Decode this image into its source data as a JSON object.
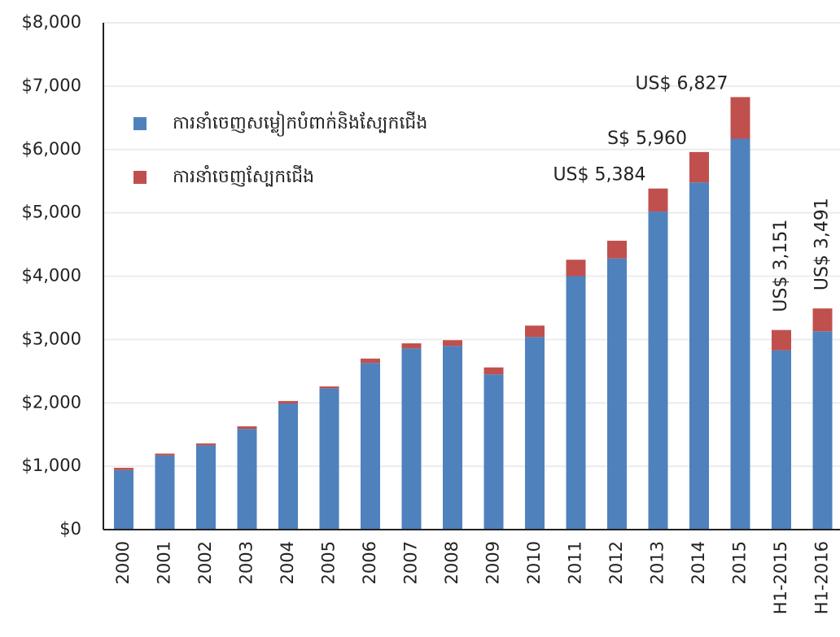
{
  "chart_data": {
    "type": "stacked_bar",
    "categories": [
      "2000",
      "2001",
      "2002",
      "2003",
      "2004",
      "2005",
      "2006",
      "2007",
      "2008",
      "2009",
      "2010",
      "2011",
      "2012",
      "2013",
      "2014",
      "2015",
      "H1-2015",
      "H1-2016"
    ],
    "series": [
      {
        "name": "ការនាំចេញសម្លៀកបំពាក់និងស្បែកជើង",
        "color": "#4f81bd",
        "values": [
          940,
          1170,
          1330,
          1590,
          1990,
          2230,
          2630,
          2860,
          2900,
          2450,
          3040,
          4000,
          4280,
          5020,
          5480,
          6170,
          2830,
          3130
        ]
      },
      {
        "name": "ការនាំចេញស្បែកជើង",
        "color": "#c0504d",
        "values": [
          35,
          30,
          30,
          40,
          40,
          30,
          70,
          80,
          90,
          110,
          180,
          260,
          280,
          364,
          480,
          657,
          321,
          361
        ]
      }
    ],
    "ylim": [
      0,
      8000
    ],
    "yticks": [
      {
        "value": 0,
        "label": "$0"
      },
      {
        "value": 1000,
        "label": "$1,000"
      },
      {
        "value": 2000,
        "label": "$2,000"
      },
      {
        "value": 3000,
        "label": "$3,000"
      },
      {
        "value": 4000,
        "label": "$4,000"
      },
      {
        "value": 5000,
        "label": "$5,000"
      },
      {
        "value": 6000,
        "label": "$6,000"
      },
      {
        "value": 7000,
        "label": "$7,000"
      },
      {
        "value": 8000,
        "label": "$8,000"
      }
    ],
    "grid": true,
    "legend": "upper left",
    "annotations": [
      {
        "text": "US$ 5,384",
        "x": "2013",
        "orientation": "horizontal"
      },
      {
        "text": "S$ 5,960",
        "x": "2014",
        "orientation": "horizontal"
      },
      {
        "text": "US$ 6,827",
        "x": "2015",
        "orientation": "horizontal"
      },
      {
        "text": "US$ 3,151",
        "x": "H1-2015",
        "orientation": "vertical"
      },
      {
        "text": "US$ 3,491",
        "x": "H1-2016",
        "orientation": "vertical"
      }
    ]
  }
}
